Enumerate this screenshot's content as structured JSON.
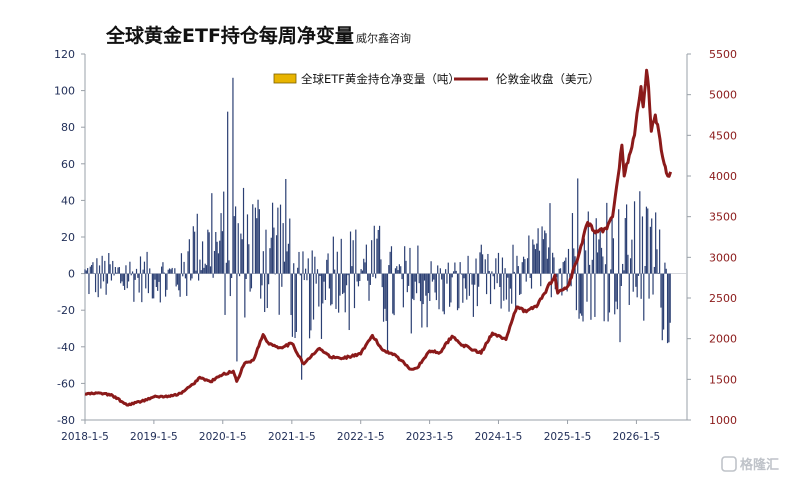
{
  "chart_data": {
    "type": "bar+line",
    "title": "全球黄金ETF持仓每周净变量",
    "subtitle": "威尔鑫咨询",
    "watermark": "格隆汇",
    "legend": [
      {
        "name": "全球ETF黄金持仓净变量（吨）",
        "color": "#e8b400",
        "kind": "bar"
      },
      {
        "name": "伦敦金收盘（美元）",
        "color": "#8b1a1a",
        "kind": "line"
      }
    ],
    "colors": {
      "bars": "#2b3f73",
      "line": "#8b1a1a",
      "axis_left": "#1f2d57",
      "axis_right": "#8b1a1a"
    },
    "left_axis": {
      "min": -80,
      "max": 120,
      "ticks": [
        "120",
        "100",
        "80",
        "60",
        "40",
        "20",
        "0",
        "-20",
        "-40",
        "-60",
        "-80"
      ]
    },
    "right_axis": {
      "min": 1000,
      "max": 5500,
      "ticks": [
        "5500",
        "5000",
        "4500",
        "4000",
        "3500",
        "3000",
        "2500",
        "2000",
        "1500",
        "1000"
      ]
    },
    "x_axis": {
      "start_date": "2018-01-05",
      "end_date": "2026-09-30",
      "tick_labels": [
        "2018-1-5",
        "2019-1-5",
        "2020-1-5",
        "2021-1-5",
        "2022-1-5",
        "2023-1-5",
        "2024-1-5",
        "2025-1-5",
        "2026-1-5"
      ],
      "tick_dates": [
        "2018-01-05",
        "2019-01-05",
        "2020-01-05",
        "2021-01-05",
        "2022-01-05",
        "2023-01-05",
        "2024-01-05",
        "2025-01-05",
        "2026-01-05"
      ]
    },
    "gold_price_series": {
      "name": "伦敦金收盘（美元）",
      "points": [
        [
          "2018-01-05",
          1320
        ],
        [
          "2018-04-01",
          1330
        ],
        [
          "2018-06-01",
          1300
        ],
        [
          "2018-08-15",
          1185
        ],
        [
          "2018-11-01",
          1230
        ],
        [
          "2019-01-05",
          1285
        ],
        [
          "2019-04-01",
          1290
        ],
        [
          "2019-06-01",
          1330
        ],
        [
          "2019-08-01",
          1440
        ],
        [
          "2019-09-05",
          1525
        ],
        [
          "2019-11-01",
          1470
        ],
        [
          "2020-01-05",
          1560
        ],
        [
          "2020-03-01",
          1600
        ],
        [
          "2020-03-19",
          1475
        ],
        [
          "2020-05-01",
          1700
        ],
        [
          "2020-06-15",
          1735
        ],
        [
          "2020-08-06",
          2050
        ],
        [
          "2020-09-01",
          1950
        ],
        [
          "2020-11-01",
          1890
        ],
        [
          "2021-01-05",
          1940
        ],
        [
          "2021-03-10",
          1690
        ],
        [
          "2021-05-01",
          1810
        ],
        [
          "2021-06-01",
          1880
        ],
        [
          "2021-08-01",
          1770
        ],
        [
          "2021-10-01",
          1760
        ],
        [
          "2022-01-05",
          1810
        ],
        [
          "2022-03-08",
          2040
        ],
        [
          "2022-05-01",
          1860
        ],
        [
          "2022-07-01",
          1810
        ],
        [
          "2022-09-28",
          1625
        ],
        [
          "2022-11-01",
          1640
        ],
        [
          "2023-01-05",
          1850
        ],
        [
          "2023-03-01",
          1830
        ],
        [
          "2023-05-04",
          2030
        ],
        [
          "2023-07-01",
          1920
        ],
        [
          "2023-10-05",
          1820
        ],
        [
          "2023-12-04",
          2070
        ],
        [
          "2024-01-05",
          2040
        ],
        [
          "2024-02-14",
          1990
        ],
        [
          "2024-04-12",
          2390
        ],
        [
          "2024-06-01",
          2330
        ],
        [
          "2024-08-01",
          2420
        ],
        [
          "2024-10-30",
          2780
        ],
        [
          "2024-11-14",
          2560
        ],
        [
          "2025-01-05",
          2640
        ],
        [
          "2025-02-24",
          2950
        ],
        [
          "2025-04-22",
          3430
        ],
        [
          "2025-06-01",
          3300
        ],
        [
          "2025-08-01",
          3350
        ],
        [
          "2025-09-01",
          3500
        ],
        [
          "2025-10-20",
          4380
        ],
        [
          "2025-11-01",
          4000
        ],
        [
          "2025-12-26",
          4500
        ],
        [
          "2026-01-29",
          5100
        ],
        [
          "2026-02-10",
          4850
        ],
        [
          "2026-02-28",
          5300
        ],
        [
          "2026-03-10",
          5100
        ],
        [
          "2026-03-25",
          4550
        ],
        [
          "2026-04-15",
          4750
        ],
        [
          "2026-05-10",
          4450
        ],
        [
          "2026-06-01",
          4150
        ],
        [
          "2026-06-20",
          4000
        ],
        [
          "2026-07-05",
          4050
        ]
      ]
    },
    "etf_bars_notable": [
      [
        "2020-02-28",
        107
      ],
      [
        "2020-03-20",
        -48
      ],
      [
        "2021-02-26",
        -58
      ],
      [
        "2025-03-01",
        52
      ],
      [
        "2026-01-20",
        45
      ],
      [
        "2026-06-20",
        -38
      ]
    ]
  }
}
